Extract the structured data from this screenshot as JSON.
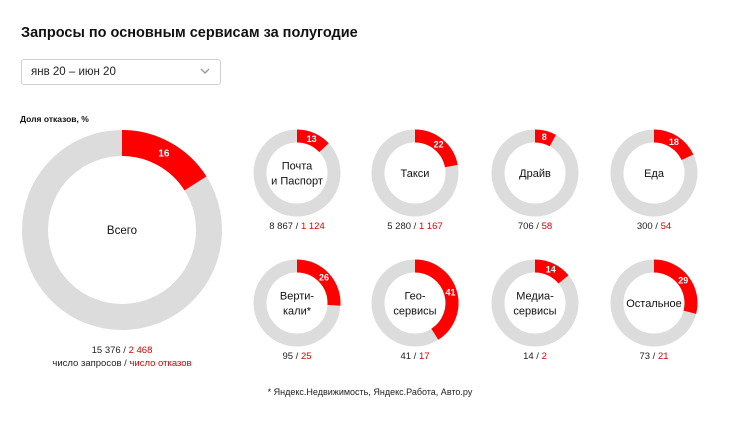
{
  "title": "Запросы по основным сервисам за полугодие",
  "period": {
    "value": "янв 20 – июн 20"
  },
  "share_label": "Доля отказов, %",
  "legend": {
    "requests": "число запросов",
    "separator": " / ",
    "rejections": "число отказов"
  },
  "footnote": "* Яндекс.Недвижимость, Яндекс.Работа, Авто.ру",
  "colors": {
    "accent": "#ff0000",
    "track": "#dcdcdc"
  },
  "chart_data": {
    "type": "pie",
    "description_of_encoding": "donut charts; red segment = share of rejections (%)",
    "total": {
      "label": "Всего",
      "percent": 16,
      "requests": "15 376",
      "rejections": "2 468"
    },
    "services": [
      {
        "label_lines": [
          "Почта",
          "и Паспорт"
        ],
        "percent": 13,
        "requests": "8 867",
        "rejections": "1 124"
      },
      {
        "label_lines": [
          "Такси"
        ],
        "percent": 22,
        "requests": "5 280",
        "rejections": "1 167"
      },
      {
        "label_lines": [
          "Драйв"
        ],
        "percent": 8,
        "requests": "706",
        "rejections": "58"
      },
      {
        "label_lines": [
          "Еда"
        ],
        "percent": 18,
        "requests": "300",
        "rejections": "54"
      },
      {
        "label_lines": [
          "Верти-",
          "кали*"
        ],
        "percent": 26,
        "requests": "95",
        "rejections": "25"
      },
      {
        "label_lines": [
          "Гео-",
          "сервисы"
        ],
        "percent": 41,
        "requests": "41",
        "rejections": "17"
      },
      {
        "label_lines": [
          "Медиа-",
          "сервисы"
        ],
        "percent": 14,
        "requests": "14",
        "rejections": "2"
      },
      {
        "label_lines": [
          "Остальное"
        ],
        "percent": 29,
        "requests": "73",
        "rejections": "21"
      }
    ]
  }
}
